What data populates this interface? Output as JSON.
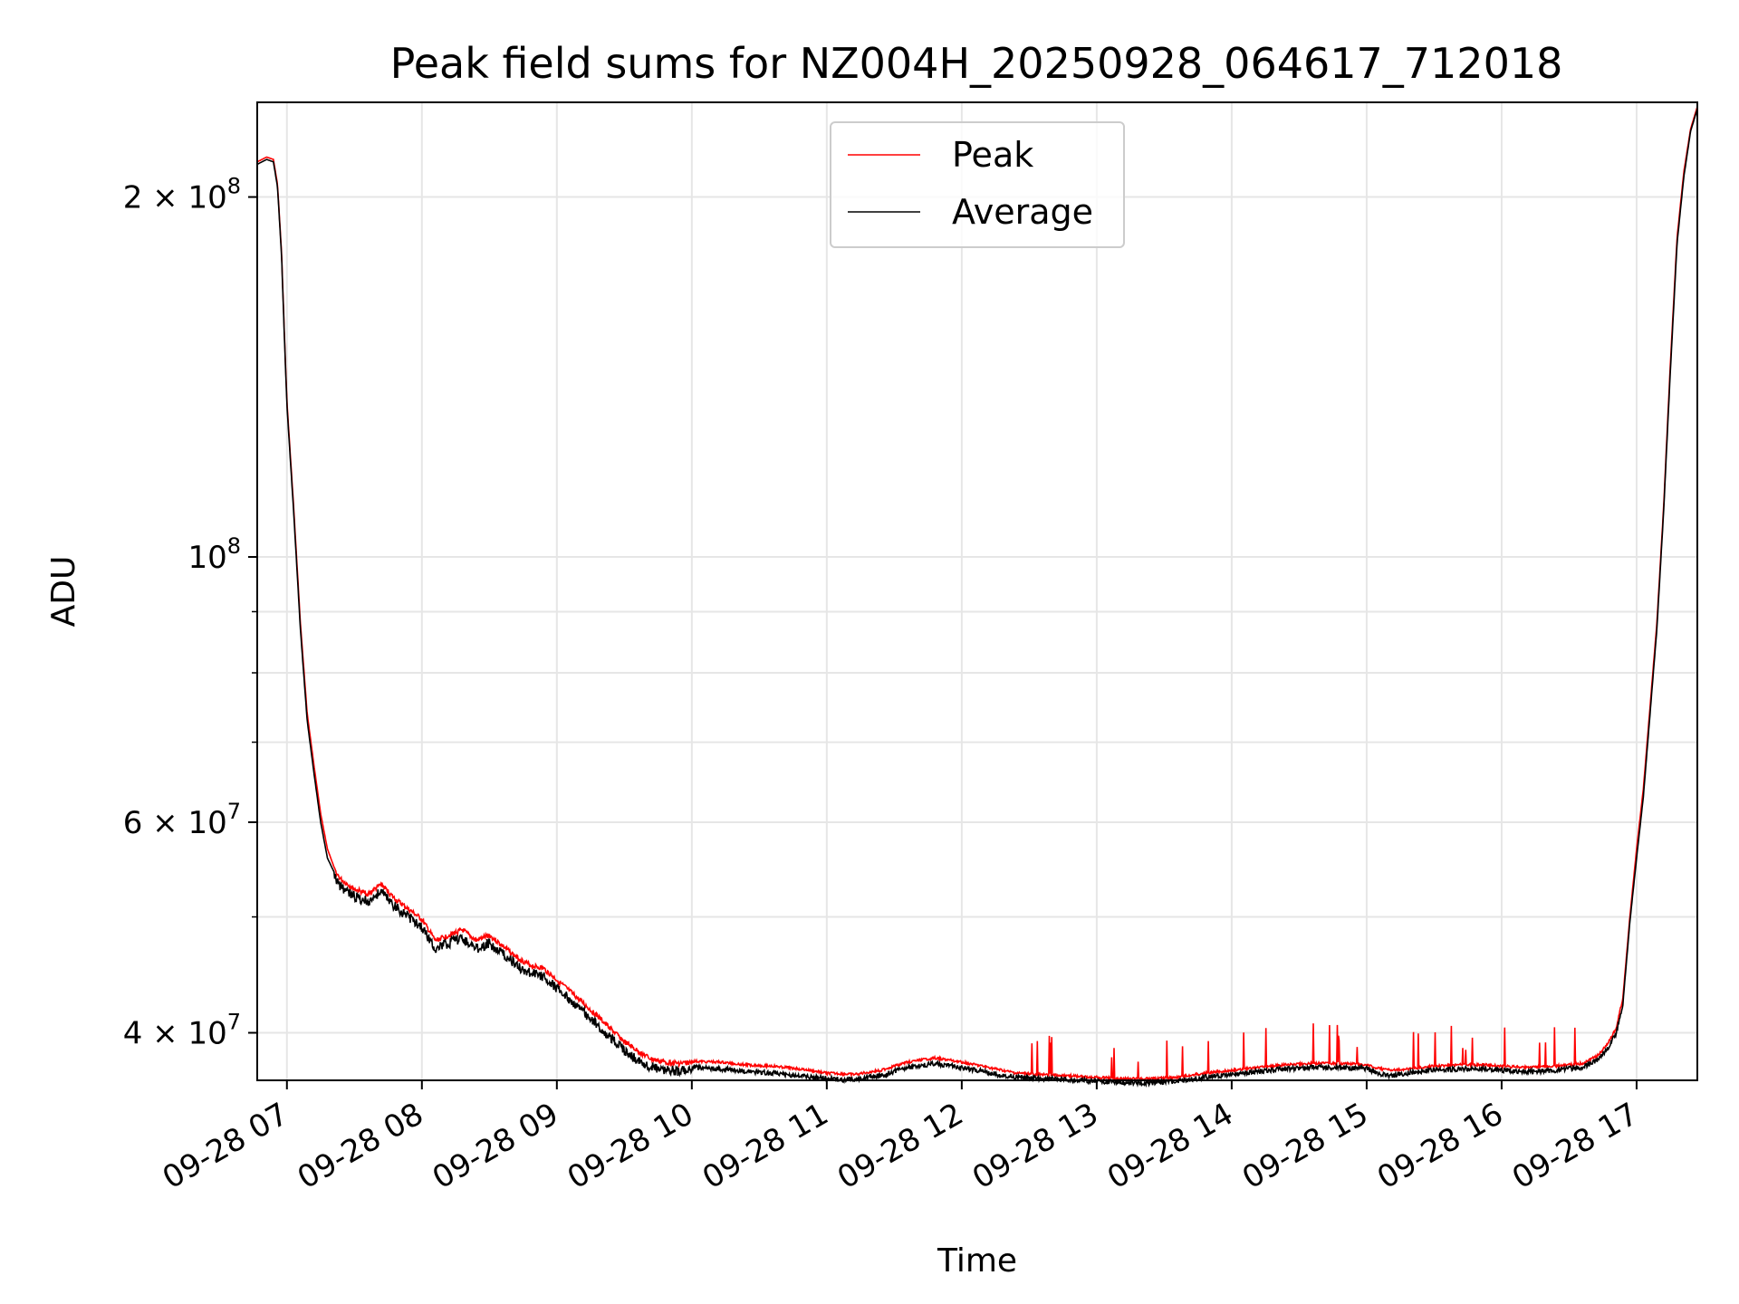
{
  "colors": {
    "peak": "#ff0000",
    "average": "#000000",
    "grid": "#e6e6e6",
    "frame": "#000000",
    "background": "#ffffff"
  },
  "chart_data": {
    "type": "line",
    "title": "Peak field sums for NZ004H_20250928_064617_712018",
    "xlabel": "Time",
    "ylabel": "ADU",
    "yscale": "log",
    "xlim_hours": [
      6.78,
      17.45
    ],
    "ylim": [
      36500000,
      240000000
    ],
    "grid": true,
    "legend_location": "upper center",
    "x_ticks": [
      {
        "hour": 7,
        "label": "09-28 07"
      },
      {
        "hour": 8,
        "label": "09-28 08"
      },
      {
        "hour": 9,
        "label": "09-28 09"
      },
      {
        "hour": 10,
        "label": "09-28 10"
      },
      {
        "hour": 11,
        "label": "09-28 11"
      },
      {
        "hour": 12,
        "label": "09-28 12"
      },
      {
        "hour": 13,
        "label": "09-28 13"
      },
      {
        "hour": 14,
        "label": "09-28 14"
      },
      {
        "hour": 15,
        "label": "09-28 15"
      },
      {
        "hour": 16,
        "label": "09-28 16"
      },
      {
        "hour": 17,
        "label": "09-28 17"
      }
    ],
    "y_major_ticks": [
      {
        "value": 40000000,
        "mantissa": "4",
        "exponent": "7"
      },
      {
        "value": 60000000,
        "mantissa": "6",
        "exponent": "7"
      },
      {
        "value": 100000000,
        "mantissa": "",
        "exponent": "8"
      },
      {
        "value": 200000000,
        "mantissa": "2",
        "exponent": "8"
      }
    ],
    "y_minor_ticks": [
      50000000,
      70000000,
      80000000,
      90000000
    ],
    "series": [
      {
        "name": "Peak",
        "color": "#ff0000",
        "x_hours": [
          6.78,
          6.85,
          6.9,
          6.93,
          6.96,
          6.98,
          7.0,
          7.05,
          7.1,
          7.15,
          7.2,
          7.25,
          7.3,
          7.35,
          7.4,
          7.5,
          7.6,
          7.7,
          7.8,
          7.9,
          8.0,
          8.1,
          8.2,
          8.3,
          8.4,
          8.5,
          8.6,
          8.7,
          8.8,
          8.9,
          9.0,
          9.1,
          9.2,
          9.3,
          9.4,
          9.5,
          9.6,
          9.7,
          9.8,
          9.9,
          10.0,
          10.2,
          10.4,
          10.6,
          10.8,
          11.0,
          11.2,
          11.4,
          11.6,
          11.8,
          12.0,
          12.2,
          12.4,
          12.6,
          12.8,
          13.0,
          13.2,
          13.4,
          13.6,
          13.8,
          14.0,
          14.2,
          14.4,
          14.6,
          14.8,
          15.0,
          15.1,
          15.2,
          15.3,
          15.5,
          15.7,
          15.9,
          16.0,
          16.2,
          16.4,
          16.6,
          16.7,
          16.75,
          16.8,
          16.85,
          16.9,
          16.95,
          17.0,
          17.05,
          17.1,
          17.15,
          17.2,
          17.25,
          17.3,
          17.35,
          17.4,
          17.45
        ],
        "values": [
          214000000,
          216000000,
          215000000,
          205000000,
          180000000,
          155000000,
          135000000,
          110000000,
          88000000,
          74000000,
          67000000,
          61000000,
          57000000,
          55000000,
          54000000,
          53000000,
          52500000,
          53500000,
          52000000,
          51000000,
          50000000,
          48000000,
          48500000,
          49000000,
          48000000,
          48500000,
          47500000,
          46500000,
          45800000,
          45500000,
          44500000,
          43500000,
          42500000,
          41500000,
          40500000,
          39500000,
          38800000,
          38200000,
          38000000,
          37900000,
          37950000,
          37900000,
          37700000,
          37600000,
          37400000,
          37100000,
          37000000,
          37300000,
          37900000,
          38200000,
          37900000,
          37500000,
          37100000,
          37000000,
          36900000,
          36800000,
          36700000,
          36700000,
          36800000,
          37100000,
          37300000,
          37500000,
          37700000,
          37800000,
          37800000,
          37700000,
          37400000,
          37300000,
          37400000,
          37600000,
          37700000,
          37700000,
          37600000,
          37500000,
          37600000,
          37800000,
          38300000,
          38800000,
          39500000,
          40500000,
          43000000,
          50000000,
          57000000,
          64000000,
          75000000,
          88000000,
          110000000,
          145000000,
          185000000,
          210000000,
          228000000,
          238000000
        ]
      },
      {
        "name": "Average",
        "color": "#000000",
        "x_hours": [
          6.78,
          6.85,
          6.9,
          6.93,
          6.96,
          6.98,
          7.0,
          7.05,
          7.1,
          7.15,
          7.2,
          7.25,
          7.3,
          7.35,
          7.4,
          7.5,
          7.6,
          7.7,
          7.8,
          7.9,
          8.0,
          8.1,
          8.2,
          8.3,
          8.4,
          8.5,
          8.6,
          8.7,
          8.8,
          8.9,
          9.0,
          9.1,
          9.2,
          9.3,
          9.4,
          9.5,
          9.6,
          9.7,
          9.8,
          9.9,
          10.0,
          10.2,
          10.4,
          10.6,
          10.8,
          11.0,
          11.2,
          11.4,
          11.6,
          11.8,
          12.0,
          12.2,
          12.4,
          12.6,
          12.8,
          13.0,
          13.2,
          13.4,
          13.6,
          13.8,
          14.0,
          14.2,
          14.4,
          14.6,
          14.8,
          15.0,
          15.1,
          15.2,
          15.3,
          15.5,
          15.7,
          15.9,
          16.0,
          16.2,
          16.4,
          16.6,
          16.7,
          16.75,
          16.8,
          16.85,
          16.9,
          16.95,
          17.0,
          17.05,
          17.1,
          17.15,
          17.2,
          17.25,
          17.3,
          17.35,
          17.4,
          17.45
        ],
        "values": [
          213000000,
          215000000,
          214000000,
          204000000,
          179000000,
          154000000,
          134000000,
          109000000,
          87000000,
          73000000,
          66000000,
          60000000,
          56000000,
          54500000,
          53500000,
          52500000,
          52000000,
          53000000,
          51500000,
          50500000,
          49500000,
          47500000,
          48000000,
          48500000,
          47500000,
          48000000,
          47000000,
          46000000,
          45300000,
          45000000,
          44000000,
          43000000,
          42000000,
          41000000,
          40000000,
          39000000,
          38300000,
          37800000,
          37600000,
          37500000,
          37600000,
          37500000,
          37300000,
          37200000,
          37000000,
          36800000,
          36700000,
          37000000,
          37600000,
          37900000,
          37600000,
          37200000,
          36900000,
          36800000,
          36700000,
          36600000,
          36500000,
          36500000,
          36600000,
          36900000,
          37100000,
          37300000,
          37500000,
          37600000,
          37600000,
          37500000,
          37100000,
          37000000,
          37200000,
          37400000,
          37500000,
          37500000,
          37400000,
          37300000,
          37400000,
          37600000,
          38100000,
          38600000,
          39200000,
          40200000,
          42500000,
          49500000,
          56000000,
          63000000,
          74000000,
          87000000,
          109000000,
          143000000,
          183000000,
          208000000,
          227000000,
          237000000
        ]
      }
    ]
  }
}
